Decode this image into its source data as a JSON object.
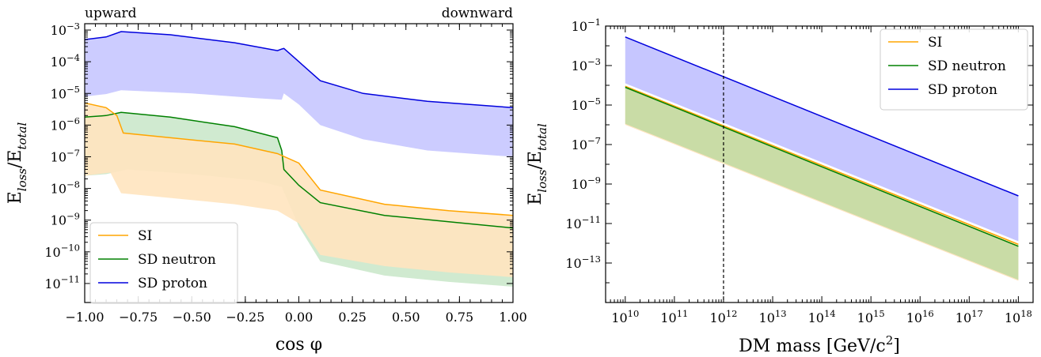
{
  "chart_data": [
    {
      "type": "area",
      "title": "",
      "corner_labels": {
        "left": "upward",
        "right": "downward"
      },
      "xlabel": "cos φ",
      "ylabel_main": "E",
      "ylabel_sub1": "loss",
      "ylabel_mid": "/E",
      "ylabel_sub2": "total",
      "xlim": [
        -1.0,
        1.0
      ],
      "ylim_log10": [
        -11.6,
        -2.8
      ],
      "y_scale": "log",
      "x_ticks": [
        -1.0,
        -0.75,
        -0.5,
        -0.25,
        0.0,
        0.25,
        0.5,
        0.75,
        1.0
      ],
      "x_tick_labels": [
        "−1.00",
        "−0.75",
        "−0.50",
        "−0.25",
        "0.00",
        "0.25",
        "0.50",
        "0.75",
        "1.00"
      ],
      "y_tick_exponents": [
        -3,
        -4,
        -5,
        -6,
        -7,
        -8,
        -9,
        -10,
        -11
      ],
      "y_tick_labels": [
        "10",
        "10",
        "10",
        "10",
        "10",
        "10",
        "10",
        "10",
        "10"
      ],
      "y_tick_sups": [
        "−3",
        "−4",
        "−5",
        "−6",
        "−7",
        "−8",
        "−9",
        "−10",
        "−11"
      ],
      "legend_position": "lower-left",
      "series": [
        {
          "name": "SD proton",
          "color": "#0000dd",
          "fill": "#c6c6ff",
          "upper": [
            [
              -1.0,
              -3.3
            ],
            [
              -0.9,
              -3.22
            ],
            [
              -0.83,
              -3.05
            ],
            [
              -0.6,
              -3.15
            ],
            [
              -0.3,
              -3.4
            ],
            [
              -0.1,
              -3.65
            ],
            [
              -0.08,
              -3.6
            ],
            [
              -0.07,
              -3.58
            ],
            [
              0.0,
              -4.0
            ],
            [
              0.1,
              -4.6
            ],
            [
              0.3,
              -5.0
            ],
            [
              0.6,
              -5.25
            ],
            [
              1.0,
              -5.45
            ]
          ],
          "lower": [
            [
              -1.0,
              -5.1
            ],
            [
              -0.9,
              -5.02
            ],
            [
              -0.83,
              -4.9
            ],
            [
              -0.5,
              -5.0
            ],
            [
              -0.2,
              -5.15
            ],
            [
              -0.08,
              -5.2
            ],
            [
              -0.07,
              -5.0
            ],
            [
              0.0,
              -5.35
            ],
            [
              0.1,
              -6.0
            ],
            [
              0.3,
              -6.45
            ],
            [
              0.6,
              -6.8
            ],
            [
              1.0,
              -7.0
            ]
          ]
        },
        {
          "name": "SD neutron",
          "color": "#008000",
          "fill": "#cbe8cb",
          "upper": [
            [
              -1.0,
              -5.75
            ],
            [
              -0.9,
              -5.7
            ],
            [
              -0.83,
              -5.6
            ],
            [
              -0.6,
              -5.75
            ],
            [
              -0.3,
              -6.05
            ],
            [
              -0.1,
              -6.4
            ],
            [
              -0.08,
              -6.8
            ],
            [
              -0.07,
              -7.4
            ],
            [
              0.0,
              -7.9
            ],
            [
              0.1,
              -8.45
            ],
            [
              0.4,
              -8.85
            ],
            [
              0.7,
              -9.05
            ],
            [
              1.0,
              -9.25
            ]
          ],
          "lower": [
            [
              -1.0,
              -7.6
            ],
            [
              -0.9,
              -7.55
            ],
            [
              -0.8,
              -7.4
            ],
            [
              -0.5,
              -7.55
            ],
            [
              -0.2,
              -7.75
            ],
            [
              -0.08,
              -7.95
            ],
            [
              0.0,
              -9.2
            ],
            [
              0.1,
              -10.3
            ],
            [
              0.4,
              -10.75
            ],
            [
              0.7,
              -10.95
            ],
            [
              1.0,
              -11.1
            ]
          ]
        },
        {
          "name": "SI",
          "color": "#ffa500",
          "fill": "#ffe4bf",
          "upper": [
            [
              -1.0,
              -5.3
            ],
            [
              -0.9,
              -5.45
            ],
            [
              -0.85,
              -5.7
            ],
            [
              -0.82,
              -6.25
            ],
            [
              -0.6,
              -6.4
            ],
            [
              -0.3,
              -6.6
            ],
            [
              -0.1,
              -6.9
            ],
            [
              0.0,
              -7.2
            ],
            [
              0.1,
              -8.05
            ],
            [
              0.4,
              -8.5
            ],
            [
              0.7,
              -8.7
            ],
            [
              1.0,
              -8.85
            ]
          ],
          "lower": [
            [
              -1.0,
              -7.6
            ],
            [
              -0.88,
              -7.5
            ],
            [
              -0.83,
              -8.15
            ],
            [
              -0.6,
              -8.3
            ],
            [
              -0.3,
              -8.5
            ],
            [
              -0.1,
              -8.7
            ],
            [
              0.0,
              -9.1
            ],
            [
              0.1,
              -10.1
            ],
            [
              0.4,
              -10.45
            ],
            [
              0.7,
              -10.65
            ],
            [
              1.0,
              -10.8
            ]
          ]
        }
      ]
    },
    {
      "type": "area",
      "title": "",
      "xlabel": "DM mass [GeV/c",
      "xlabel_sup": "2",
      "xlabel_end": "]",
      "ylabel_main": "E",
      "ylabel_sub1": "loss",
      "ylabel_mid": "/E",
      "ylabel_sub2": "total",
      "x_scale": "log",
      "y_scale": "log",
      "xlim_log10": [
        9.6,
        18.3
      ],
      "ylim_log10": [
        -15.0,
        -1.0
      ],
      "x_tick_exponents": [
        10,
        11,
        12,
        13,
        14,
        15,
        16,
        17,
        18
      ],
      "x_tick_labels": [
        "10",
        "10",
        "10",
        "10",
        "10",
        "10",
        "10",
        "10",
        "10"
      ],
      "x_tick_sups": [
        "10",
        "11",
        "12",
        "13",
        "14",
        "15",
        "16",
        "17",
        "18"
      ],
      "y_tick_exponents": [
        -1,
        -3,
        -5,
        -7,
        -9,
        -11,
        -13
      ],
      "y_tick_labels": [
        "10",
        "10",
        "10",
        "10",
        "10",
        "10",
        "10"
      ],
      "y_tick_sups": [
        "−1",
        "−3",
        "−5",
        "−7",
        "−9",
        "−11",
        "−13"
      ],
      "vline_x_log10": 12,
      "legend_position": "top-right",
      "series": [
        {
          "name": "SD proton",
          "color": "#0000dd",
          "fill": "#c6c6ff",
          "upper": [
            [
              10,
              -1.55
            ],
            [
              18,
              -9.6
            ]
          ],
          "lower": [
            [
              10,
              -3.9
            ],
            [
              18,
              -11.9
            ]
          ]
        },
        {
          "name": "SI",
          "color": "#ffa500",
          "fill": "#ffe4bf",
          "upper": [
            [
              10,
              -4.05
            ],
            [
              18,
              -12.05
            ]
          ],
          "lower": [
            [
              10,
              -6.0
            ],
            [
              18,
              -13.9
            ]
          ]
        },
        {
          "name": "SD neutron",
          "color": "#008000",
          "fill": "#c9dca6",
          "upper": [
            [
              10,
              -4.1
            ],
            [
              18,
              -12.15
            ]
          ],
          "lower": [
            [
              10,
              -5.95
            ],
            [
              18,
              -13.85
            ]
          ]
        }
      ],
      "legend": [
        "SI",
        "SD neutron",
        "SD proton"
      ]
    }
  ]
}
